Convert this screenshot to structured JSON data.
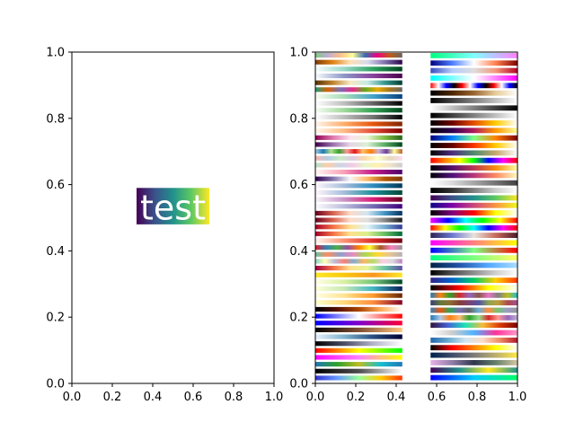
{
  "chart_data": [
    {
      "type": "image",
      "xlim": [
        0.0,
        1.0
      ],
      "ylim": [
        0.0,
        1.0
      ],
      "xticks": [
        "0.0",
        "0.2",
        "0.4",
        "0.6",
        "0.8",
        "1.0"
      ],
      "yticks": [
        "0.0",
        "0.2",
        "0.4",
        "0.6",
        "0.8",
        "1.0"
      ],
      "grid": false,
      "annotation": {
        "text": "test",
        "x_center": 0.5,
        "y_center": 0.53,
        "box_x": [
          0.32,
          0.68
        ],
        "box_y": [
          0.48,
          0.59
        ],
        "background_colormap": [
          "#440154",
          "#3b528b",
          "#21918c",
          "#5ec962",
          "#fde725"
        ]
      }
    },
    {
      "type": "image",
      "xlim": [
        0.0,
        1.0
      ],
      "ylim": [
        0.0,
        1.0
      ],
      "xticks": [
        "0.0",
        "0.2",
        "0.4",
        "0.6",
        "0.8",
        "1.0"
      ],
      "yticks": [
        "0.0",
        "0.2",
        "0.4",
        "0.6",
        "0.8",
        "1.0"
      ],
      "grid": false,
      "colormap_strips": {
        "column_1_x": [
          0.0,
          0.43
        ],
        "column_2_x": [
          0.57,
          1.0
        ],
        "column_1_colormaps": [
          [
            "#7fc97f",
            "#beaed4",
            "#fdc086",
            "#ffff99",
            "#386cb0",
            "#f0027f",
            "#bf5b17",
            "#666666"
          ],
          [
            "#7f3b08",
            "#e08214",
            "#fee0b6",
            "#d8daeb",
            "#8073ac",
            "#2d004b"
          ],
          [
            "#f7fcfd",
            "#99d8c9",
            "#2ca25f",
            "#00441b"
          ],
          [
            "#f7fcfd",
            "#8c96c6",
            "#88419d",
            "#4d004b"
          ],
          [
            "#543005",
            "#bf812d",
            "#f6e8c3",
            "#c7eae5",
            "#35978f",
            "#003c30"
          ],
          [
            "#1b9e77",
            "#d95f02",
            "#7570b3",
            "#e7298a",
            "#66a61e",
            "#e6ab02",
            "#a6761d",
            "#666666"
          ],
          [
            "#f7fcf0",
            "#a8ddb5",
            "#43a2ca",
            "#084081"
          ],
          [
            "#ffffff",
            "#bdbdbd",
            "#636363",
            "#000000"
          ],
          [
            "#f7fcf5",
            "#a1d99b",
            "#31a354",
            "#00441b"
          ],
          [
            "#ffffff",
            "#bdbdbd",
            "#737373",
            "#000000"
          ],
          [
            "#fff5eb",
            "#fdae6b",
            "#e6550d",
            "#7f2704"
          ],
          [
            "#fff7ec",
            "#fdbb84",
            "#e34a33",
            "#7f0000"
          ],
          [
            "#8e0152",
            "#de77ae",
            "#fde0ef",
            "#e6f5d0",
            "#7fbc41",
            "#276419"
          ],
          [
            "#40004b",
            "#9970ab",
            "#e7d4e8",
            "#d9f0d3",
            "#5aae61",
            "#00441b"
          ],
          [
            "#a6cee3",
            "#1f78b4",
            "#b2df8a",
            "#33a02c",
            "#fb9a99",
            "#e31a1c",
            "#fdbf6f",
            "#ff7f00",
            "#cab2d6",
            "#6a3d9a",
            "#ffff99",
            "#b15928"
          ],
          [
            "#fbb4ae",
            "#b3cde3",
            "#ccebc5",
            "#decbe4",
            "#fed9a6",
            "#ffffcc",
            "#e5d8bd",
            "#fddaec"
          ],
          [
            "#b3e2cd",
            "#fdcdac",
            "#cbd5e8",
            "#f4cae4",
            "#e6f5c9",
            "#fff2ae",
            "#f1e2cc",
            "#cccccc"
          ],
          [
            "#fff7f3",
            "#fa9fb5",
            "#c51b8a",
            "#49006a"
          ],
          [
            "#2d004b",
            "#8073ac",
            "#f7f7f7",
            "#fdb863",
            "#b35806",
            "#7f3b08"
          ],
          [
            "#fff7fb",
            "#a6bddb",
            "#2b8cbe",
            "#023858"
          ],
          [
            "#fff7fb",
            "#a6bddb",
            "#1c9099",
            "#014636"
          ],
          [
            "#f7f4f9",
            "#c994c7",
            "#dd1c77",
            "#67001f"
          ],
          [
            "#fcfbfd",
            "#bcbddc",
            "#756bb1",
            "#3f007d"
          ],
          [
            "#67001f",
            "#d6604d",
            "#fddbc7",
            "#d1e5f0",
            "#4393c3",
            "#053061"
          ],
          [
            "#67001f",
            "#d6604d",
            "#fddbc7",
            "#e0e0e0",
            "#878787",
            "#1a1a1a"
          ],
          [
            "#a50026",
            "#f46d43",
            "#fee090",
            "#e0f3f8",
            "#74add1",
            "#313695"
          ],
          [
            "#a50026",
            "#f46d43",
            "#fee08b",
            "#d9ef8b",
            "#66bd63",
            "#006837"
          ],
          [
            "#fff5f0",
            "#fc9272",
            "#de2d26",
            "#67000d"
          ],
          [
            "#e41a1c",
            "#377eb8",
            "#4daf4a",
            "#984ea3",
            "#ff7f00",
            "#ffff33",
            "#a65628",
            "#f781bf",
            "#999999"
          ],
          [
            "#66c2a5",
            "#fc8d62",
            "#8da0cb",
            "#e78ac3",
            "#a6d854",
            "#ffd92f",
            "#e5c494",
            "#b3b3b3"
          ],
          [
            "#8dd3c7",
            "#ffffb3",
            "#bebada",
            "#fb8072",
            "#80b1d3",
            "#fdb462",
            "#b3de69",
            "#fccde5",
            "#d9d9d9",
            "#bc80bd"
          ],
          [
            "#9e0142",
            "#f46d43",
            "#fee08b",
            "#e6f598",
            "#66c2a5",
            "#5e4fa2"
          ],
          [
            "#fde725",
            "#f9c80e",
            "#f8961e",
            "#fde725"
          ],
          [
            "#ffffe5",
            "#d9f0a3",
            "#78c679",
            "#004529"
          ],
          [
            "#ffffd9",
            "#c7e9b4",
            "#41b6c4",
            "#081d58"
          ],
          [
            "#ffffe5",
            "#fee391",
            "#fe9929",
            "#662506"
          ],
          [
            "#ffffcc",
            "#fed976",
            "#fd8d3c",
            "#800026"
          ],
          [
            "#000000",
            "#551100",
            "#aa4400",
            "#ffaa55",
            "#ffffff"
          ],
          [
            "#0000ff",
            "#7f7fff",
            "#ffffff",
            "#ff7f7f",
            "#ff0000"
          ],
          [
            "#0000ff",
            "#7f00cc",
            "#ff0033"
          ],
          [
            "#000000",
            "#804d33",
            "#ffc77f"
          ],
          [
            "#e6f0ff",
            "#80b3cc",
            "#264d80",
            "#000033"
          ],
          [
            "#000000",
            "#4d4d66",
            "#b3b3c9",
            "#ffffff"
          ],
          [
            "#ff0000",
            "#ff7f00",
            "#ffff00",
            "#7fff00",
            "#00ff00"
          ],
          [
            "#ff00ff",
            "#ff80ff",
            "#ffff00"
          ],
          [
            "#1f77b4",
            "#2ca02c",
            "#bcbd22",
            "#17becf",
            "#1f77b4"
          ],
          [
            "#000000",
            "#4d4d4d",
            "#ffffff"
          ],
          [
            "#3333cc",
            "#6699ff",
            "#99ff99",
            "#ffcc00",
            "#ff3300"
          ]
        ],
        "column_2_colormaps": [
          [
            "#00ff80",
            "#80ffff",
            "#ff80ff"
          ],
          [
            "#000080",
            "#4d80ff",
            "#ffffff",
            "#ff804d",
            "#800000"
          ],
          [
            "#3b4cc0",
            "#b5cdfa",
            "#dddddd",
            "#f4987a",
            "#b40426"
          ],
          [
            "#00ffff",
            "#ffffff",
            "#ff00ff"
          ],
          [
            "#ff0000",
            "#ffffff",
            "#0000ff",
            "#000000",
            "#ff0000",
            "#ffffff",
            "#0000ff",
            "#000000",
            "#ff0000",
            "#ffffff",
            "#0000ff",
            "#000000"
          ],
          [
            "#000000",
            "#4d2600",
            "#996633",
            "#e6cc99",
            "#ffffff"
          ],
          [
            "#000000",
            "#333333",
            "#666666",
            "#999999",
            "#cccccc",
            "#ffffff"
          ],
          [
            "#ffffff",
            "#cccccc",
            "#999999",
            "#666666",
            "#333333",
            "#000000"
          ],
          [
            "#000000",
            "#808080",
            "#ffffff"
          ],
          [
            "#000000",
            "#6e0000",
            "#e64d00",
            "#ffcc00",
            "#ffffff"
          ],
          [
            "#000000",
            "#2e0052",
            "#b31a5e",
            "#ff9900",
            "#ffff99"
          ],
          [
            "#00007f",
            "#0080ff",
            "#7fff7f",
            "#ff8000",
            "#7f0000"
          ],
          [
            "#000000",
            "#660000",
            "#ff3300",
            "#ffcc00",
            "#ffffff"
          ],
          [
            "#000000",
            "#4f2d7f",
            "#4d8b6d",
            "#c7a76c",
            "#ffffff"
          ],
          [
            "#ff0000",
            "#ff8000",
            "#ffff00",
            "#00ff00",
            "#0000ff",
            "#ff00ff",
            "#ff0000"
          ],
          [
            "#000004",
            "#57106e",
            "#bc3754",
            "#f98e09",
            "#fcffa4"
          ],
          [
            "#000004",
            "#51127c",
            "#b73779",
            "#fc8961",
            "#fcfdbf"
          ],
          [
            "#ffffff",
            "#d9d9d9",
            "#a6a6a6",
            "#737373",
            "#404040"
          ],
          [
            "#000000",
            "#333333",
            "#808080",
            "#cccccc",
            "#ffffff"
          ],
          [
            "#440154",
            "#3b528b",
            "#21918c",
            "#5ec962",
            "#fde725"
          ],
          [
            "#0d0887",
            "#7e03a8",
            "#cc4778",
            "#f89540",
            "#f0f921"
          ],
          [
            "#000000",
            "#800080",
            "#ff0000",
            "#ffff00",
            "#ffffff"
          ],
          [
            "#ff00ff",
            "#0000ff",
            "#00ffff",
            "#00ff00",
            "#ffff00",
            "#ff0000"
          ],
          [
            "#ff0000",
            "#ffff00",
            "#00ff00",
            "#00ffff",
            "#0000ff",
            "#ff00ff",
            "#ff0000"
          ],
          [
            "#2e2255",
            "#6e78d0",
            "#e6e2dc",
            "#c86b5a",
            "#4d1a2c"
          ],
          [
            "#ff00ff",
            "#ffff00"
          ],
          [
            "#0000ff",
            "#7fff7f",
            "#ff0000"
          ],
          [
            "#00ff80",
            "#80ff80",
            "#ffff66"
          ],
          [
            "#002244",
            "#2255aa",
            "#55aaff",
            "#aaddff"
          ],
          [
            "#000000",
            "#4f4f4f",
            "#8f8f8f",
            "#cfcfcf",
            "#ffffff"
          ],
          [
            "#332288",
            "#0066cc",
            "#00cc66",
            "#ffcc00",
            "#ff3300"
          ],
          [
            "#000000",
            "#ff0000",
            "#ffff00",
            "#ffffff"
          ],
          [
            "#1f77b4",
            "#ff7f0e",
            "#2ca02c",
            "#d62728",
            "#9467bd",
            "#8c564b",
            "#e377c2",
            "#7f7f7f",
            "#bcbd22",
            "#17becf"
          ],
          [
            "#393b79",
            "#637939",
            "#8c6d31",
            "#843c39",
            "#7b4173",
            "#5254a3",
            "#8ca252",
            "#bd9e39",
            "#ad494a",
            "#a55194"
          ],
          [
            "#3182bd",
            "#e6550d",
            "#31a354",
            "#756bb1",
            "#636363",
            "#6baed6",
            "#fd8d3c",
            "#74c476",
            "#9e9ac8",
            "#969696"
          ],
          [
            "#1f77b4",
            "#aec7e8",
            "#ff7f0e",
            "#ffbb78",
            "#2ca02c",
            "#98df8a",
            "#d62728",
            "#ff9896",
            "#9467bd",
            "#c5b0d5"
          ],
          [
            "#30123b",
            "#4662d7",
            "#1ae4b6",
            "#f9ba38",
            "#d93806",
            "#7a0403"
          ],
          [
            "#ffffff",
            "#cccccc",
            "#4db3ff",
            "#ff3399",
            "#ff99cc"
          ],
          [
            "#2166ac",
            "#67a9cf",
            "#d1e5f0",
            "#fddbc7",
            "#ef8a62",
            "#b2182b"
          ],
          [
            "#000000",
            "#ff0000",
            "#ff8000",
            "#ffff00",
            "#ffffff"
          ],
          [
            "#00204c",
            "#404d6b",
            "#7c7b78",
            "#bcaf6f",
            "#ffe945"
          ],
          [
            "#e9b1e9",
            "#8f7ca6",
            "#2f354d",
            "#64806b",
            "#d7c7a2"
          ],
          [
            "#440154",
            "#21918c",
            "#fde725",
            "#21918c"
          ],
          [
            "#0000ff",
            "#00ccff",
            "#00ff66"
          ]
        ]
      }
    }
  ]
}
